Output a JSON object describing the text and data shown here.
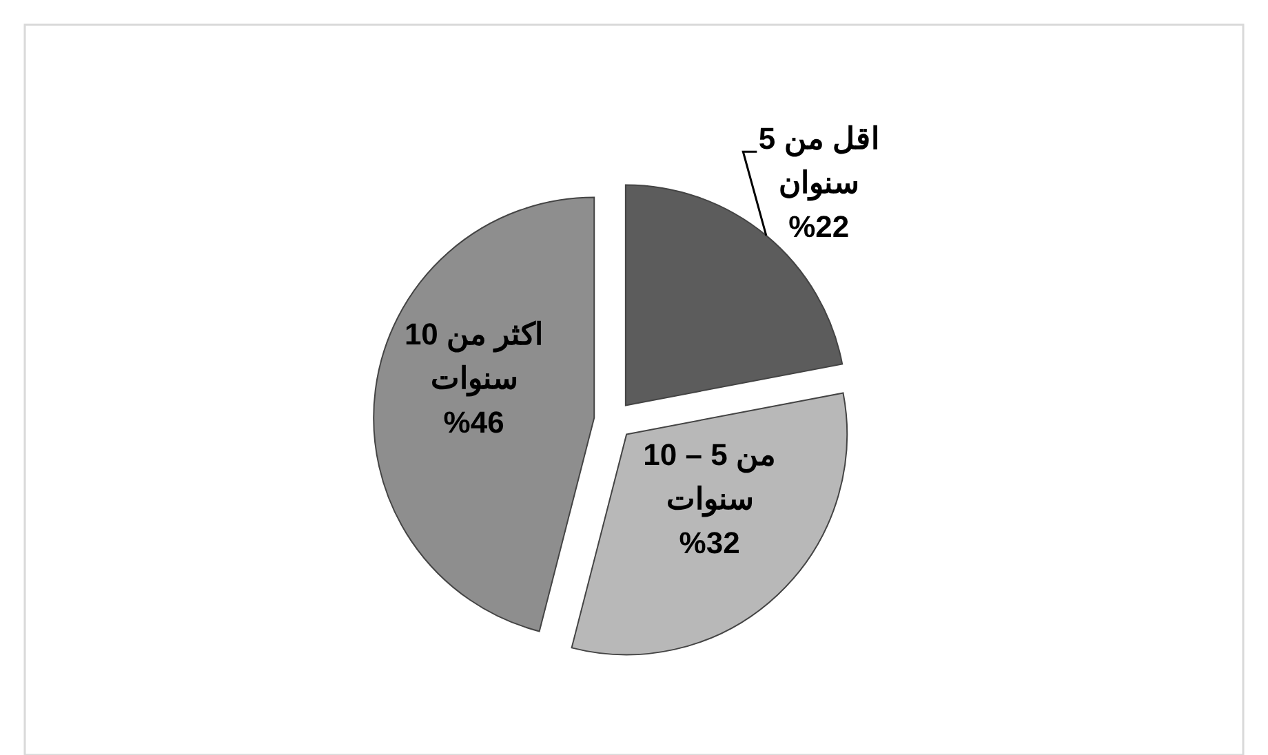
{
  "chart_data": {
    "type": "pie",
    "categories": [
      "اقل من 5\nسنوان",
      "من 5 – 10\nسنوات",
      "اكثر من 10\nسنوات"
    ],
    "values": [
      22,
      32,
      46
    ],
    "value_labels": [
      "%22",
      "%32",
      "%46"
    ],
    "colors": [
      "#5c5c5c",
      "#b8b8b8",
      "#8e8e8e"
    ]
  }
}
